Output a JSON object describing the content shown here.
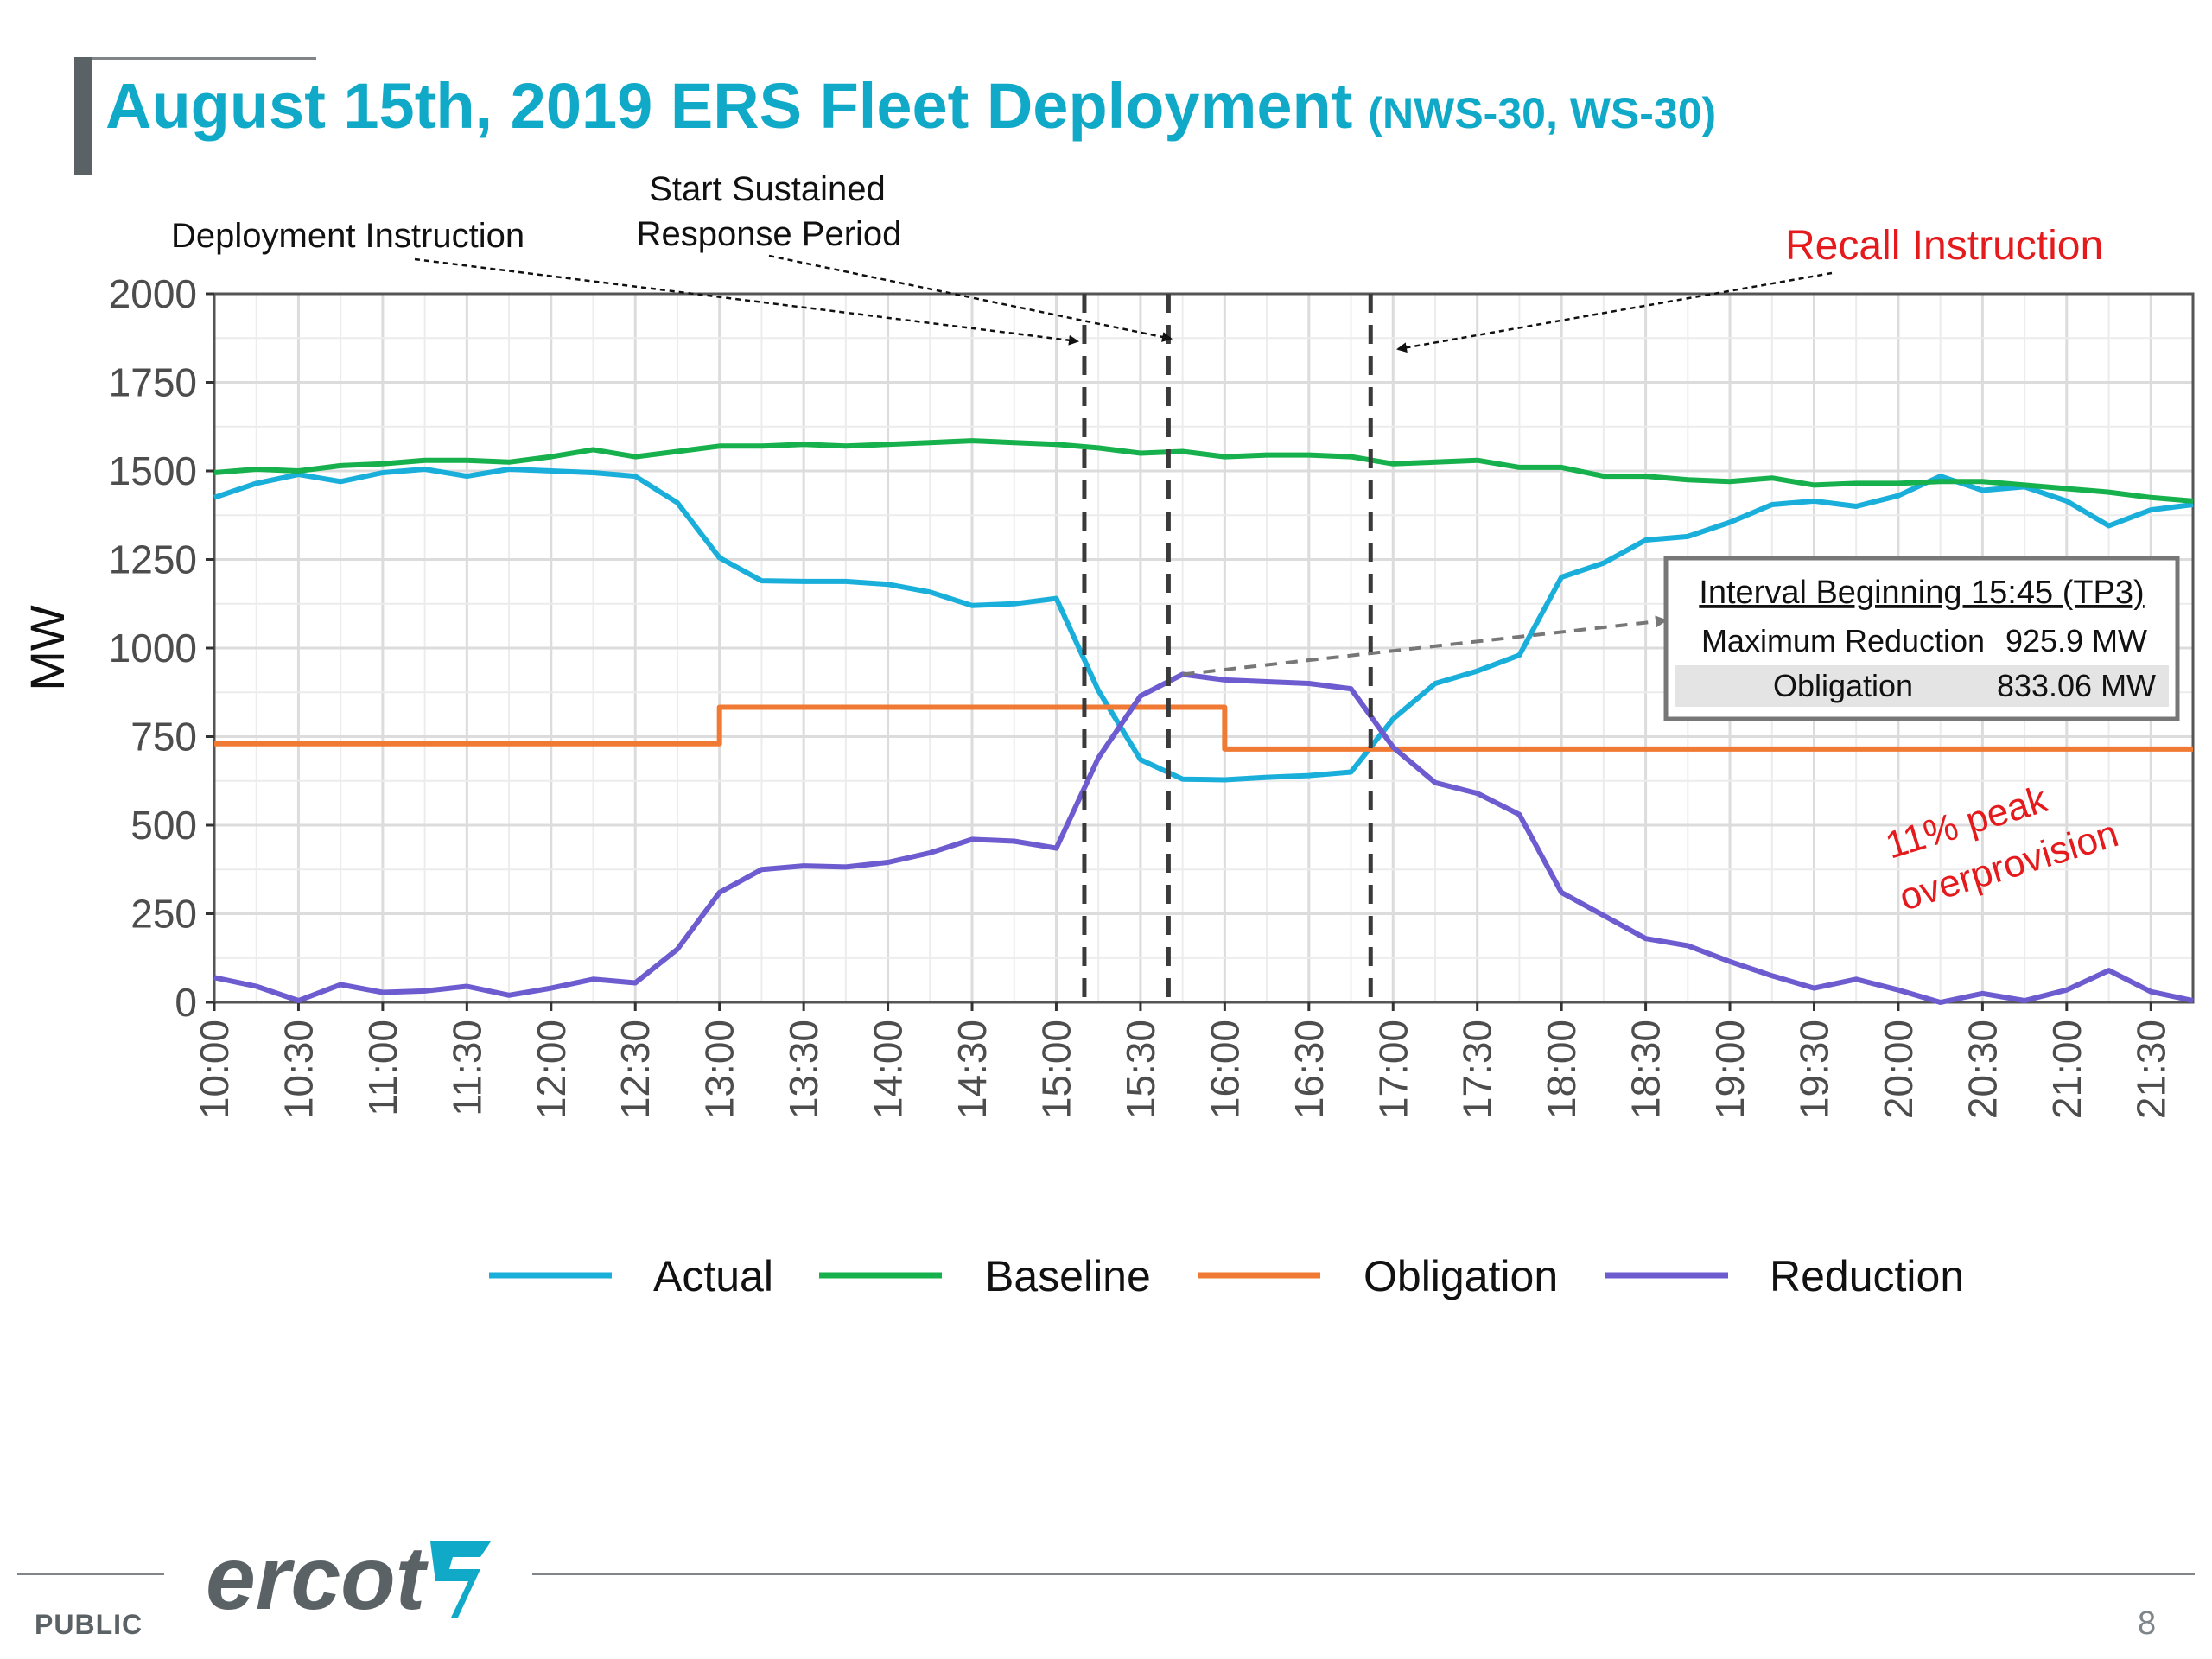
{
  "header": {
    "title": "August 15th, 2019 ERS Fleet Deployment",
    "subtitle": "(NWS-30, WS-30)"
  },
  "footer": {
    "classification": "PUBLIC",
    "page_number": "8",
    "logo_text": "ercot"
  },
  "chart_data": {
    "type": "line",
    "ylabel": "MW",
    "xlabel": "",
    "ylim": [
      0,
      2000
    ],
    "yticks": [
      0,
      250,
      500,
      750,
      1000,
      1250,
      1500,
      1750,
      2000
    ],
    "xlim": [
      "10:00",
      "21:45"
    ],
    "xticks": [
      "10:00",
      "10:30",
      "11:00",
      "11:30",
      "12:00",
      "12:30",
      "13:00",
      "13:30",
      "14:00",
      "14:30",
      "15:00",
      "15:30",
      "16:00",
      "16:30",
      "17:00",
      "17:30",
      "18:00",
      "18:30",
      "19:00",
      "19:30",
      "20:00",
      "20:30",
      "21:00",
      "21:30"
    ],
    "grid": true,
    "legend_position": "bottom",
    "x": [
      "10:00",
      "10:15",
      "10:30",
      "10:45",
      "11:00",
      "11:15",
      "11:30",
      "11:45",
      "12:00",
      "12:15",
      "12:30",
      "12:45",
      "13:00",
      "13:15",
      "13:30",
      "13:45",
      "14:00",
      "14:15",
      "14:30",
      "14:45",
      "15:00",
      "15:15",
      "15:30",
      "15:45",
      "16:00",
      "16:15",
      "16:30",
      "16:45",
      "17:00",
      "17:15",
      "17:30",
      "17:45",
      "18:00",
      "18:15",
      "18:30",
      "18:45",
      "19:00",
      "19:15",
      "19:30",
      "19:45",
      "20:00",
      "20:15",
      "20:30",
      "20:45",
      "21:00",
      "21:15",
      "21:30",
      "21:45"
    ],
    "series": [
      {
        "name": "Actual",
        "color": "#1aafda",
        "values": [
          1425,
          1465,
          1490,
          1470,
          1495,
          1505,
          1485,
          1505,
          1500,
          1495,
          1485,
          1410,
          1255,
          1190,
          1188,
          1188,
          1180,
          1158,
          1120,
          1125,
          1140,
          880,
          685,
          630,
          628,
          635,
          640,
          650,
          800,
          900,
          935,
          980,
          1200,
          1240,
          1305,
          1315,
          1355,
          1405,
          1415,
          1400,
          1430,
          1485,
          1445,
          1455,
          1415,
          1345,
          1390,
          1405
        ]
      },
      {
        "name": "Baseline",
        "color": "#16b04c",
        "values": [
          1495,
          1505,
          1500,
          1515,
          1520,
          1530,
          1530,
          1525,
          1540,
          1560,
          1540,
          1555,
          1570,
          1570,
          1575,
          1570,
          1575,
          1580,
          1585,
          1580,
          1575,
          1565,
          1550,
          1555,
          1540,
          1545,
          1545,
          1540,
          1520,
          1525,
          1530,
          1510,
          1510,
          1485,
          1485,
          1475,
          1470,
          1480,
          1460,
          1465,
          1465,
          1470,
          1470,
          1460,
          1450,
          1440,
          1425,
          1415
        ]
      },
      {
        "name": "Obligation",
        "color": "#f07a33",
        "values": [
          730,
          730,
          730,
          730,
          730,
          730,
          730,
          730,
          730,
          730,
          730,
          730,
          833.06,
          833.06,
          833.06,
          833.06,
          833.06,
          833.06,
          833.06,
          833.06,
          833.06,
          833.06,
          833.06,
          833.06,
          715,
          715,
          715,
          715,
          715,
          715,
          715,
          715,
          715,
          715,
          715,
          715,
          715,
          715,
          715,
          715,
          715,
          715,
          715,
          715,
          715,
          715,
          715,
          715
        ]
      },
      {
        "name": "Reduction",
        "color": "#6d5bd0",
        "values": [
          70,
          45,
          5,
          50,
          28,
          32,
          45,
          20,
          40,
          65,
          55,
          150,
          310,
          375,
          385,
          382,
          395,
          422,
          460,
          455,
          435,
          690,
          865,
          925.9,
          910,
          905,
          900,
          885,
          720,
          620,
          590,
          530,
          310,
          245,
          180,
          160,
          115,
          75,
          40,
          65,
          35,
          0,
          25,
          5,
          35,
          90,
          30,
          5
        ]
      }
    ],
    "vertical_markers": [
      {
        "x": "15:10",
        "label": "Deployment Instruction"
      },
      {
        "x": "15:40",
        "label": "Start Sustained Response Period"
      },
      {
        "x": "16:52",
        "label": "Recall Instruction"
      }
    ],
    "annotations": {
      "deployment": "Deployment Instruction",
      "sustained_line1": "Start Sustained",
      "sustained_line2": "Response Period",
      "recall": "Recall Instruction",
      "overprovision_line1": "11% peak",
      "overprovision_line2": "overprovision"
    },
    "callout_box": {
      "heading": "Interval Beginning 15:45 (TP3)",
      "rows": [
        {
          "label": "Maximum Reduction",
          "value": "925.9 MW"
        },
        {
          "label": "Obligation",
          "value": "833.06 MW"
        }
      ],
      "points_to": {
        "x": "15:45",
        "y": 925.9
      }
    }
  }
}
